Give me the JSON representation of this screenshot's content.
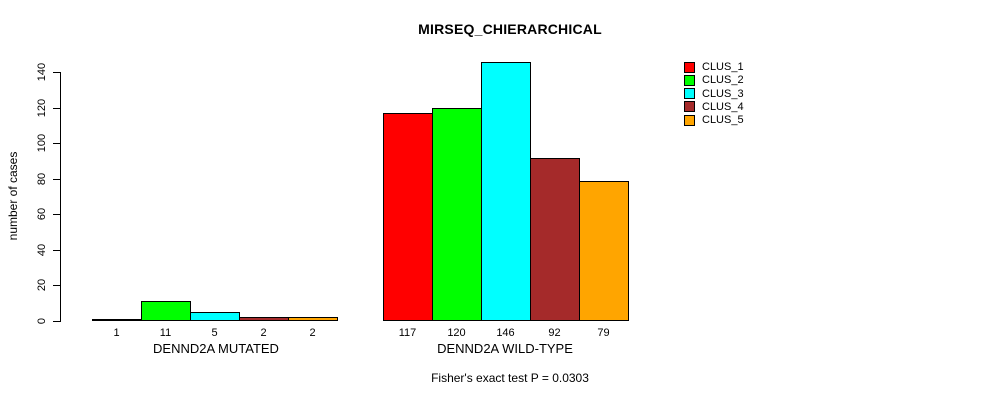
{
  "chart_data": {
    "type": "bar",
    "title": "MIRSEQ_CHIERARCHICAL",
    "ylabel": "number of cases",
    "xlabel": "",
    "ylim": [
      0,
      140
    ],
    "yticks": [
      0,
      20,
      40,
      60,
      80,
      100,
      120,
      140
    ],
    "grid": false,
    "legend_position": "right-outside",
    "background": "#ffffff",
    "axis_color": "#000000",
    "categories": [
      "DENND2A MUTATED",
      "DENND2A WILD-TYPE"
    ],
    "series": [
      {
        "name": "CLUS_1",
        "color": "#FF0000",
        "values": [
          1,
          117
        ]
      },
      {
        "name": "CLUS_2",
        "color": "#00FF00",
        "values": [
          11,
          120
        ]
      },
      {
        "name": "CLUS_3",
        "color": "#00FFFF",
        "values": [
          5,
          146
        ]
      },
      {
        "name": "CLUS_4",
        "color": "#A52A2A",
        "values": [
          2,
          92
        ]
      },
      {
        "name": "CLUS_5",
        "color": "#FFA500",
        "values": [
          2,
          79
        ]
      }
    ],
    "groups": [
      {
        "label": "DENND2A MUTATED",
        "values": [
          1,
          11,
          5,
          2,
          2
        ]
      },
      {
        "label": "DENND2A WILD-TYPE",
        "values": [
          117,
          120,
          146,
          92,
          79
        ]
      }
    ],
    "bar_value_labels_shown": true,
    "annotation": "Fisher's exact test P = 0.0303"
  }
}
